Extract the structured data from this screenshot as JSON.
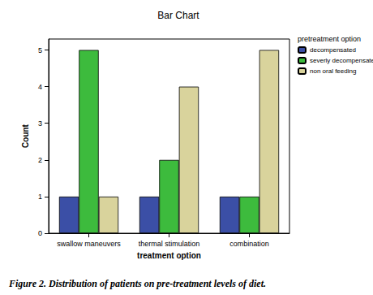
{
  "chart_data": {
    "type": "bar",
    "title": "Bar Chart",
    "caption": "Figure 2. Distribution of patients on pre-treatment levels of diet.",
    "x_label": "treatment option",
    "y_label": "Count",
    "legend_title": "pretreatment option",
    "categories": [
      "swallow maneuvers",
      "thermal stimulation",
      "combination"
    ],
    "series": [
      {
        "name": "decompensated",
        "color": "#3b4fa6",
        "values": [
          1,
          1,
          1
        ]
      },
      {
        "name": "severly decompensated",
        "color": "#3dbb3d",
        "values": [
          5,
          2,
          1
        ]
      },
      {
        "name": "non oral feeding",
        "color": "#d9d39c",
        "values": [
          1,
          4,
          5
        ]
      }
    ],
    "ylim": [
      0,
      5.3
    ],
    "yticks": [
      0,
      1,
      2,
      3,
      4,
      5
    ],
    "grid": false,
    "legend": "right"
  }
}
